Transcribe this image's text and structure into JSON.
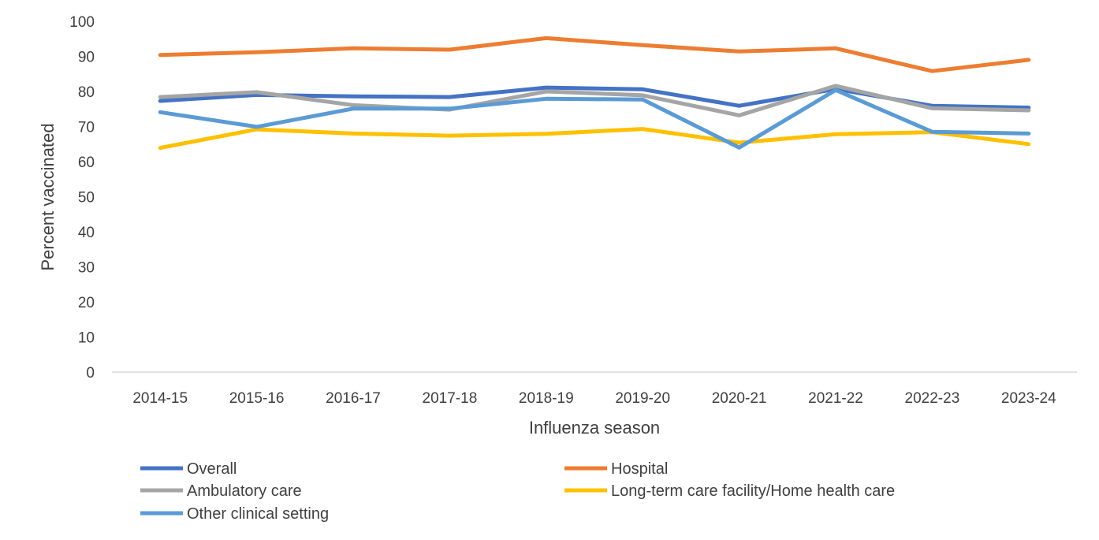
{
  "chart_data": {
    "type": "line",
    "title": "",
    "xlabel": "Influenza season",
    "ylabel": "Percent vaccinated",
    "ylim": [
      0,
      100
    ],
    "yticks": [
      0,
      10,
      20,
      30,
      40,
      50,
      60,
      70,
      80,
      90,
      100
    ],
    "grid": false,
    "legend_position": "bottom",
    "categories": [
      "2014-15",
      "2015-16",
      "2016-17",
      "2017-18",
      "2018-19",
      "2019-20",
      "2020-21",
      "2021-22",
      "2022-23",
      "2023-24"
    ],
    "series": [
      {
        "name": "Overall",
        "color": "#4472C4",
        "values": [
          77.3,
          79.0,
          78.6,
          78.4,
          81.1,
          80.6,
          75.9,
          80.7,
          75.9,
          75.4
        ]
      },
      {
        "name": "Hospital",
        "color": "#ED7D31",
        "values": [
          90.4,
          91.2,
          92.3,
          91.9,
          95.2,
          93.2,
          91.4,
          92.3,
          85.8,
          89.0
        ]
      },
      {
        "name": "Ambulatory care",
        "color": "#A5A5A5",
        "values": [
          78.4,
          79.8,
          76.1,
          74.8,
          80.0,
          78.9,
          73.2,
          81.6,
          75.2,
          74.6
        ]
      },
      {
        "name": "Long-term care facility/Home health care",
        "color": "#FFC000",
        "values": [
          63.9,
          69.2,
          68.0,
          67.4,
          67.9,
          69.3,
          65.4,
          67.8,
          68.4,
          65.0
        ]
      },
      {
        "name": "Other clinical setting",
        "color": "#5B9BD5",
        "values": [
          74.1,
          69.9,
          75.1,
          75.1,
          77.9,
          77.7,
          64.0,
          80.4,
          68.5,
          68.0
        ]
      }
    ]
  }
}
